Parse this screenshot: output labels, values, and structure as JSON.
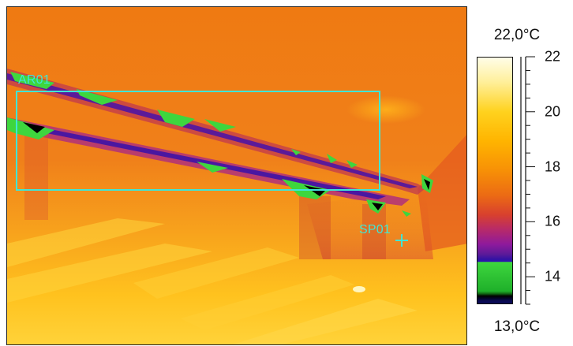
{
  "overlays": {
    "area_label": "AR01",
    "spot_label": "SP01"
  },
  "scale": {
    "max_label": "22,0°C",
    "min_label": "13,0°C",
    "max_value": 22.0,
    "min_value": 13.0,
    "ticks": [
      {
        "value": 22,
        "label": "22"
      },
      {
        "value": 20,
        "label": "20"
      },
      {
        "value": 18,
        "label": "18"
      },
      {
        "value": 16,
        "label": "16"
      },
      {
        "value": 14,
        "label": "14"
      }
    ]
  },
  "colors": {
    "overlay": "#3fe6d6",
    "background_warm": "#ee7a14",
    "hot": "#ffd21e",
    "cold": "#5b1a99",
    "coldest": "#3ed63e"
  }
}
